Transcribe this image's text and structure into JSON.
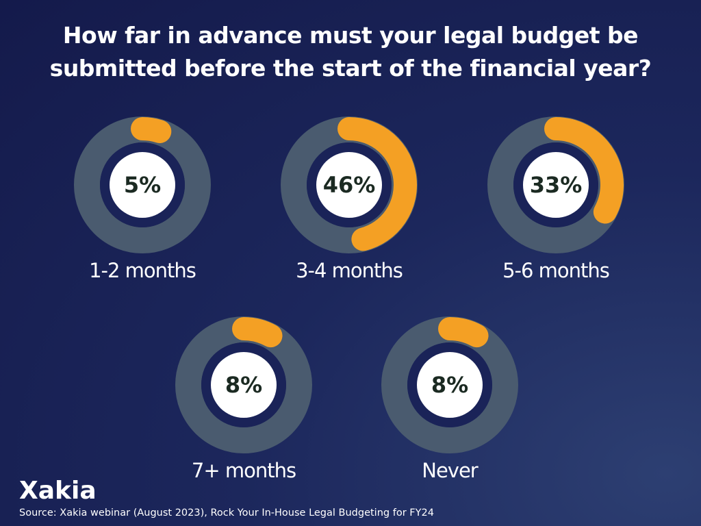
{
  "chart_data": {
    "type": "donut",
    "title": "How far in advance must your legal budget be submitted before the start of the financial year?",
    "categories": [
      "1-2 months",
      "3-4 months",
      "5-6 months",
      "7+ months",
      "Never"
    ],
    "values": [
      5,
      46,
      33,
      8,
      8
    ],
    "value_labels": [
      "5%",
      "46%",
      "33%",
      "8%",
      "8%"
    ],
    "color": "#f4a024",
    "track_color": "#4a5b6f",
    "logo": "Xakia",
    "source": "Source: Xakia webinar (August 2023), Rock Your In-House Legal Budgeting for FY24"
  }
}
